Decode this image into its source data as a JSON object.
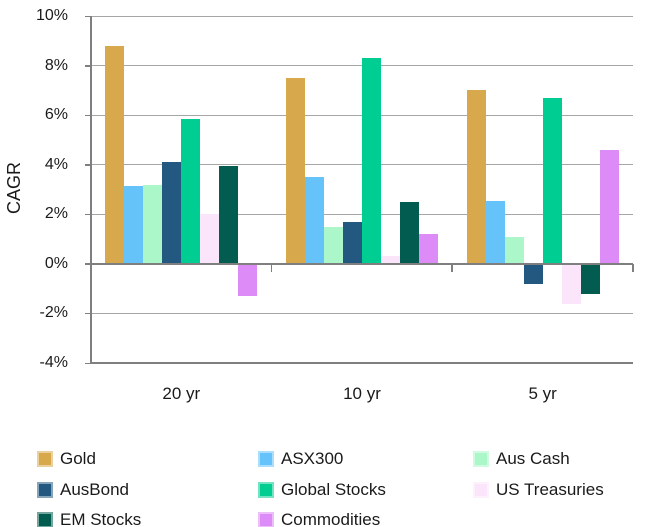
{
  "chart_data": {
    "type": "bar",
    "title": "",
    "xlabel": "",
    "ylabel": "CAGR",
    "categories": [
      "20 yr",
      "10 yr",
      "5 yr"
    ],
    "series": [
      {
        "name": "Gold",
        "color": "#D8A94C",
        "values": [
          8.8,
          7.5,
          7.0
        ]
      },
      {
        "name": "ASX300",
        "color": "#66C3F9",
        "values": [
          3.15,
          3.5,
          2.55
        ]
      },
      {
        "name": "Aus Cash",
        "color": "#ABF7C9",
        "values": [
          3.2,
          1.5,
          1.1
        ]
      },
      {
        "name": "AusBond",
        "color": "#235981",
        "values": [
          4.1,
          1.7,
          -0.8
        ]
      },
      {
        "name": "Global Stocks",
        "color": "#00CD92",
        "values": [
          5.85,
          8.3,
          6.7
        ]
      },
      {
        "name": "US Treasuries",
        "color": "#FBE5FA",
        "values": [
          2.0,
          0.3,
          -1.6
        ]
      },
      {
        "name": "EM Stocks",
        "color": "#035C50",
        "values": [
          3.95,
          2.5,
          -1.2
        ]
      },
      {
        "name": "Commodities",
        "color": "#DC8BF7",
        "values": [
          -1.3,
          1.2,
          4.6
        ]
      }
    ],
    "ylim": [
      -4,
      10
    ],
    "ytick_values": [
      10,
      8,
      6,
      4,
      2,
      0,
      -2,
      -4
    ],
    "ytick_labels": [
      "10%",
      "8%",
      "6%",
      "4%",
      "2%",
      "0%",
      "-2%",
      "-4%"
    ],
    "grid": true,
    "legend_position": "bottom",
    "legend_columns": 3
  },
  "colors": {
    "gridline": "#A6A6A6",
    "axis": "#7F7F7F",
    "text": "#1A1A1A",
    "background": "#FFFFFF"
  }
}
